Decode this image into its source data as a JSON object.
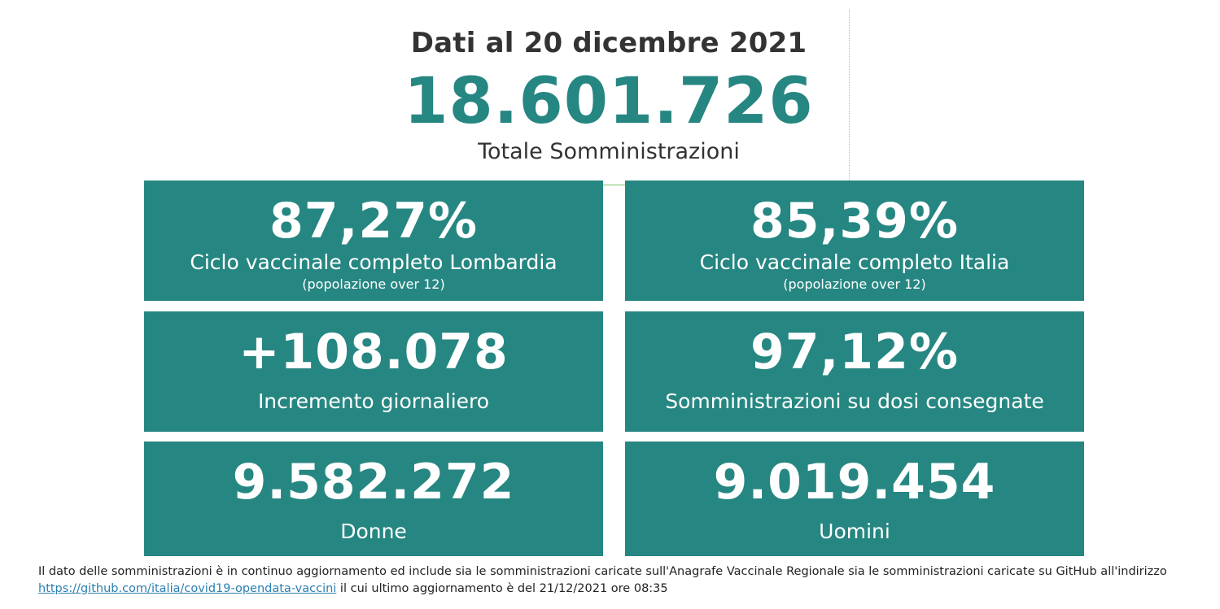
{
  "header": {
    "date_title": "Dati al 20 dicembre 2021",
    "total_value": "18.601.726",
    "total_label": "Totale Somministrazioni"
  },
  "tiles": [
    {
      "value": "87,27%",
      "label": "Ciclo vaccinale completo Lombardia",
      "sublabel": "(popolazione over 12)"
    },
    {
      "value": "85,39%",
      "label": "Ciclo vaccinale completo Italia",
      "sublabel": "(popolazione over 12)"
    },
    {
      "value": "+108.078",
      "label": "Incremento giornaliero"
    },
    {
      "value": "97,12%",
      "label": "Somministrazioni su dosi consegnate"
    },
    {
      "value": "9.582.272",
      "label": "Donne"
    },
    {
      "value": "9.019.454",
      "label": "Uomini"
    }
  ],
  "footer": {
    "line1": "Il dato delle somministrazioni è in continuo aggiornamento ed include sia le somministrazioni caricate sull'Anagrafe Vaccinale Regionale sia le somministrazioni caricate su GitHub all'indirizzo",
    "link_text": "https://github.com/italia/covid19-opendata-vaccini",
    "line2_rest": " il cui ultimo aggiornamento è del 21/12/2021 ore 08:35"
  },
  "colors": {
    "tile_background": "#268681",
    "accent_text": "#268681",
    "link": "#2a7fb0"
  }
}
